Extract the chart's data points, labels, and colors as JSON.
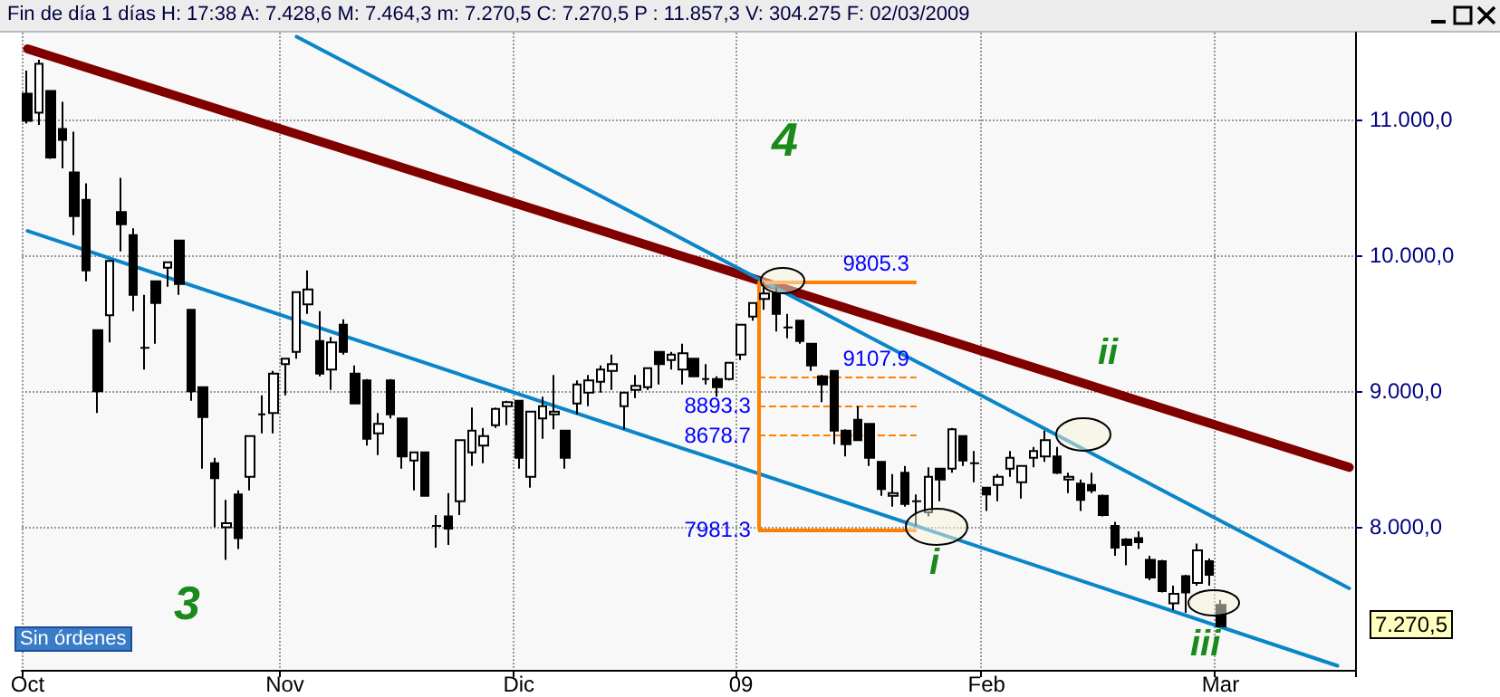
{
  "chart_data": {
    "type": "candlestick",
    "categories": [
      "Oct",
      null,
      null,
      null,
      null,
      null,
      null,
      null,
      null,
      null,
      null,
      null,
      null,
      null,
      null,
      null,
      null,
      null,
      null,
      null,
      null,
      null,
      "Nov",
      null,
      null,
      null,
      null,
      null,
      null,
      null,
      null,
      null,
      null,
      null,
      null,
      null,
      null,
      null,
      null,
      null,
      null,
      null,
      "Dic",
      null,
      null,
      null,
      null,
      null,
      null,
      null,
      null,
      null,
      null,
      null,
      null,
      null,
      null,
      null,
      null,
      null,
      null,
      "09",
      null,
      null,
      null,
      null,
      null,
      null,
      null,
      null,
      null,
      null,
      null,
      null,
      null,
      null,
      null,
      null,
      null,
      null,
      null,
      null,
      "Feb",
      null,
      null,
      null,
      null,
      null,
      null,
      null,
      null,
      null,
      null,
      null,
      null,
      null,
      null,
      null,
      null,
      null,
      null,
      null,
      "Mar",
      null,
      null,
      null,
      null,
      null,
      null,
      null,
      null,
      null,
      null,
      null
    ],
    "ohlc": [
      [
        11190,
        11360,
        10970,
        10990
      ],
      [
        11050,
        11440,
        10960,
        11410
      ],
      [
        11210,
        11210,
        10710,
        10720
      ],
      [
        10930,
        11130,
        10640,
        10850
      ],
      [
        10610,
        10910,
        10150,
        10290
      ],
      [
        10410,
        10530,
        9810,
        9890
      ],
      [
        9450,
        9450,
        8840,
        9000
      ],
      [
        9560,
        9960,
        9360,
        9960
      ],
      [
        10320,
        10570,
        10030,
        10230
      ],
      [
        10150,
        10200,
        9590,
        9710
      ],
      [
        9320,
        9710,
        9160,
        9320
      ],
      [
        9810,
        9810,
        9350,
        9650
      ],
      [
        9910,
        9950,
        9770,
        9950
      ],
      [
        10110,
        10110,
        9710,
        9790
      ],
      [
        9600,
        9600,
        8930,
        9000
      ],
      [
        9030,
        9030,
        8430,
        8810
      ],
      [
        8470,
        8510,
        8000,
        8360
      ],
      [
        8000,
        8200,
        7760,
        8030
      ],
      [
        8240,
        8270,
        7840,
        7920
      ],
      [
        8370,
        8670,
        8270,
        8670
      ],
      [
        8830,
        8970,
        8690,
        8830
      ],
      [
        8840,
        9150,
        8690,
        9130
      ],
      [
        9200,
        9240,
        8970,
        9240
      ],
      [
        9290,
        9730,
        9240,
        9730
      ],
      [
        9640,
        9890,
        9570,
        9750
      ],
      [
        9370,
        9590,
        9110,
        9130
      ],
      [
        9160,
        9400,
        9010,
        9360
      ],
      [
        9490,
        9530,
        9270,
        9290
      ],
      [
        9130,
        9190,
        8910,
        8910
      ],
      [
        9080,
        9090,
        8600,
        8650
      ],
      [
        8690,
        8840,
        8530,
        8760
      ],
      [
        9080,
        9090,
        8800,
        8830
      ],
      [
        8800,
        8800,
        8430,
        8520
      ],
      [
        8490,
        8550,
        8270,
        8550
      ],
      [
        8550,
        8550,
        8230,
        8230
      ],
      [
        8010,
        8090,
        7850,
        8010
      ],
      [
        8080,
        8250,
        7870,
        7990
      ],
      [
        8190,
        8640,
        8090,
        8640
      ],
      [
        8550,
        8880,
        8450,
        8710
      ],
      [
        8600,
        8730,
        8470,
        8670
      ],
      [
        8750,
        8880,
        8730,
        8870
      ],
      [
        8890,
        8930,
        8750,
        8920
      ],
      [
        8930,
        8930,
        8430,
        8510
      ],
      [
        8370,
        8850,
        8290,
        8850
      ],
      [
        8800,
        8960,
        8650,
        8890
      ],
      [
        8830,
        9120,
        8720,
        8850
      ],
      [
        8710,
        8710,
        8430,
        8510
      ],
      [
        8910,
        9080,
        8830,
        9050
      ],
      [
        8990,
        9120,
        8890,
        9080
      ],
      [
        9070,
        9190,
        8990,
        9160
      ],
      [
        9150,
        9270,
        9010,
        9200
      ],
      [
        8890,
        8990,
        8720,
        8990
      ],
      [
        9010,
        9120,
        8950,
        9040
      ],
      [
        9030,
        9170,
        9010,
        9170
      ],
      [
        9290,
        9290,
        9050,
        9200
      ],
      [
        9230,
        9290,
        9160,
        9270
      ],
      [
        9160,
        9350,
        9050,
        9280
      ],
      [
        9240,
        9240,
        9110,
        9110
      ],
      [
        9090,
        9200,
        9050,
        9090
      ],
      [
        9090,
        9110,
        8960,
        9030
      ],
      [
        9090,
        9210,
        9080,
        9210
      ],
      [
        9270,
        9490,
        9230,
        9490
      ],
      [
        9550,
        9650,
        9520,
        9650
      ],
      [
        9680,
        9805,
        9600,
        9720
      ],
      [
        9720,
        9770,
        9440,
        9570
      ],
      [
        9470,
        9570,
        9390,
        9470
      ],
      [
        9520,
        9520,
        9350,
        9370
      ],
      [
        9350,
        9350,
        9150,
        9190
      ],
      [
        9110,
        9120,
        8920,
        9050
      ],
      [
        9150,
        9150,
        8610,
        8710
      ],
      [
        8710,
        8720,
        8520,
        8610
      ],
      [
        8790,
        8890,
        8640,
        8640
      ],
      [
        8760,
        8760,
        8450,
        8510
      ],
      [
        8480,
        8480,
        8230,
        8280
      ],
      [
        8230,
        8390,
        8150,
        8250
      ],
      [
        8400,
        8450,
        8150,
        8170
      ],
      [
        8190,
        8240,
        8010,
        8190
      ],
      [
        8110,
        8440,
        8080,
        8370
      ],
      [
        8430,
        8430,
        8190,
        8350
      ],
      [
        8430,
        8730,
        8400,
        8720
      ],
      [
        8670,
        8670,
        8450,
        8490
      ],
      [
        8470,
        8560,
        8330,
        8470
      ],
      [
        8290,
        8290,
        8120,
        8240
      ],
      [
        8310,
        8390,
        8190,
        8370
      ],
      [
        8430,
        8560,
        8370,
        8510
      ],
      [
        8330,
        8450,
        8210,
        8450
      ],
      [
        8510,
        8590,
        8440,
        8560
      ],
      [
        8520,
        8710,
        8480,
        8640
      ],
      [
        8520,
        8590,
        8390,
        8400
      ],
      [
        8350,
        8400,
        8250,
        8370
      ],
      [
        8320,
        8350,
        8120,
        8200
      ],
      [
        8310,
        8400,
        8250,
        8270
      ],
      [
        8230,
        8240,
        8080,
        8090
      ],
      [
        8010,
        8040,
        7790,
        7850
      ],
      [
        7910,
        7920,
        7720,
        7870
      ],
      [
        7920,
        7970,
        7840,
        7890
      ],
      [
        7760,
        7790,
        7610,
        7630
      ],
      [
        7750,
        7760,
        7520,
        7530
      ],
      [
        7440,
        7570,
        7390,
        7510
      ],
      [
        7640,
        7650,
        7370,
        7520
      ],
      [
        7590,
        7880,
        7570,
        7830
      ],
      [
        7750,
        7770,
        7570,
        7650
      ],
      [
        7428.6,
        7464.3,
        7270.5,
        7270.5
      ],
      null,
      null,
      null,
      null,
      null,
      null,
      null,
      null,
      null,
      null,
      null
    ],
    "series": [
      {
        "type": "line",
        "color": "#800000",
        "values": [
          11520,
          null,
          null,
          null,
          null,
          null,
          null,
          null,
          null,
          null,
          null,
          null,
          null,
          null,
          null,
          null,
          null,
          null,
          null,
          null,
          null,
          null,
          null,
          null,
          null,
          null,
          null,
          null,
          null,
          null,
          null,
          null,
          null,
          null,
          null,
          null,
          null,
          null,
          null,
          null,
          null,
          null,
          null,
          null,
          null,
          null,
          null,
          null,
          null,
          null,
          null,
          null,
          null,
          null,
          null,
          null,
          null,
          null,
          null,
          null,
          null,
          null,
          null,
          null,
          null,
          null,
          null,
          null,
          null,
          null,
          null,
          null,
          null,
          null,
          null,
          null,
          null,
          null,
          null,
          null,
          null,
          null,
          null,
          null,
          null,
          null,
          null,
          null,
          null,
          null,
          null,
          null,
          null,
          null,
          null,
          null,
          null,
          null,
          null,
          null,
          null,
          null,
          null,
          null,
          null,
          null,
          null,
          null,
          null,
          null,
          null,
          null,
          null,
          8440
        ]
      },
      {
        "type": "line",
        "color": "#0a86c8",
        "values": [
          null,
          null,
          null,
          null,
          null,
          null,
          null,
          null,
          null,
          null,
          null,
          null,
          null,
          null,
          null,
          null,
          null,
          null,
          null,
          null,
          null,
          null,
          null,
          11610,
          null,
          null,
          null,
          null,
          null,
          null,
          null,
          null,
          null,
          null,
          null,
          null,
          null,
          null,
          null,
          null,
          null,
          null,
          null,
          null,
          null,
          null,
          null,
          null,
          null,
          null,
          null,
          null,
          null,
          null,
          null,
          null,
          null,
          null,
          null,
          null,
          null,
          null,
          null,
          null,
          null,
          null,
          null,
          null,
          null,
          null,
          null,
          null,
          null,
          null,
          null,
          null,
          null,
          null,
          null,
          null,
          null,
          null,
          null,
          null,
          null,
          null,
          null,
          null,
          null,
          null,
          null,
          null,
          null,
          null,
          null,
          null,
          null,
          null,
          null,
          null,
          null,
          null,
          null,
          null,
          null,
          null,
          null,
          null,
          null,
          null,
          null,
          null,
          null,
          7550
        ]
      },
      {
        "type": "line",
        "color": "#0a86c8",
        "values": [
          10180,
          null,
          null,
          null,
          null,
          null,
          null,
          null,
          null,
          null,
          null,
          null,
          null,
          null,
          null,
          null,
          null,
          null,
          null,
          null,
          null,
          null,
          null,
          null,
          null,
          null,
          null,
          null,
          null,
          null,
          null,
          null,
          null,
          null,
          null,
          null,
          null,
          null,
          null,
          null,
          null,
          null,
          null,
          null,
          null,
          null,
          null,
          null,
          null,
          null,
          null,
          null,
          null,
          null,
          null,
          null,
          null,
          null,
          null,
          null,
          null,
          null,
          null,
          null,
          null,
          null,
          null,
          null,
          null,
          null,
          null,
          null,
          null,
          null,
          null,
          null,
          null,
          null,
          null,
          null,
          null,
          null,
          null,
          null,
          null,
          null,
          null,
          null,
          null,
          null,
          null,
          null,
          null,
          null,
          null,
          null,
          null,
          null,
          null,
          null,
          null,
          null,
          null,
          null,
          null,
          null,
          null,
          null,
          null,
          null,
          null,
          null,
          6980,
          null
        ]
      }
    ],
    "ylim": [
      6950,
      11640
    ],
    "yticks": [
      {
        "value": 8000,
        "label": "8.000,0"
      },
      {
        "value": 9000,
        "label": "9.000,0"
      },
      {
        "value": 10000,
        "label": "10.000,0"
      },
      {
        "value": 11000,
        "label": "11.000,0"
      }
    ],
    "grid": true,
    "ref_lines": [
      {
        "axis": "y",
        "value": 9805.3,
        "label": "9805.3",
        "color": "#ff8000",
        "line_style": "solid"
      },
      {
        "axis": "y",
        "value": 9107.9,
        "label": "9107.9",
        "color": "#ff8000",
        "line_style": "dashed"
      },
      {
        "axis": "y",
        "value": 8893.3,
        "label": "8893.3",
        "color": "#ff8000",
        "line_style": "dashed"
      },
      {
        "axis": "y",
        "value": 8678.7,
        "label": "8678.7",
        "color": "#ff8000",
        "line_style": "dashed"
      },
      {
        "axis": "y",
        "value": 7981.3,
        "label": "7981.3",
        "color": "#ff8000",
        "line_style": "solid"
      }
    ],
    "annotations": [
      "Fin de día 1 días H: 17:38 A: 7.428,6 M: 7.464,3 m: 7.270,5 C: 7.270,5 P : 11.857,3 V: 304.275 F: 02/03/2009",
      "4",
      "3",
      "i",
      "ii",
      "iii",
      "Sin órdenes",
      "7.270,5"
    ]
  }
}
